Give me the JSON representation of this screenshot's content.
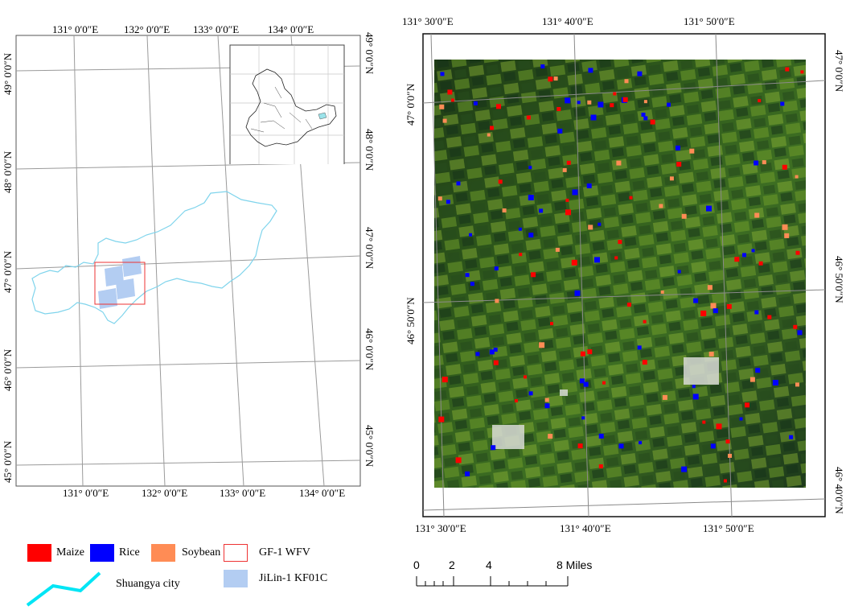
{
  "left_map": {
    "top_ticks": [
      "131° 0′0″E",
      "132° 0′0″E",
      "133° 0′0″E",
      "134° 0′0″E"
    ],
    "bottom_ticks": [
      "131° 0′0″E",
      "132° 0′0″E",
      "133° 0′0″E",
      "134° 0′0″E"
    ],
    "left_ticks": [
      "49° 0′0″N",
      "48° 0′0″N",
      "47° 0′0″N",
      "46° 0′0″N",
      "45° 0′0″N"
    ],
    "right_ticks": [
      "49° 0′0″N",
      "48° 0′0″N",
      "47° 0′0″N",
      "46° 0′0″N",
      "45° 0′0″N"
    ]
  },
  "right_map": {
    "top_ticks": [
      "131° 30′0″E",
      "131° 40′0″E",
      "131° 50′0″E"
    ],
    "bottom_ticks": [
      "131° 30′0″E",
      "131° 40′0″E",
      "131° 50′0″E"
    ],
    "left_ticks": [
      "47° 0′0″N",
      "46° 50′0″N"
    ],
    "right_ticks": [
      "47° 0′0″N",
      "46° 50′0″N",
      "46° 40′0″N"
    ]
  },
  "legend": {
    "maize": "Maize",
    "rice": "Rice",
    "soybean": "Soybean",
    "gf1": "GF-1 WFV",
    "jilin": "JiLin-1 KF01C",
    "city": "Shuangya city"
  },
  "colors": {
    "maize": "#ff0000",
    "rice": "#0000ff",
    "soybean": "#ff8c55",
    "gf1_outline": "#ee3333",
    "jilin_fill": "#b3cdf2",
    "city_line": "#00e5f5"
  },
  "scale_bar": {
    "labels": [
      "0",
      "2",
      "4",
      "8 Miles"
    ]
  }
}
